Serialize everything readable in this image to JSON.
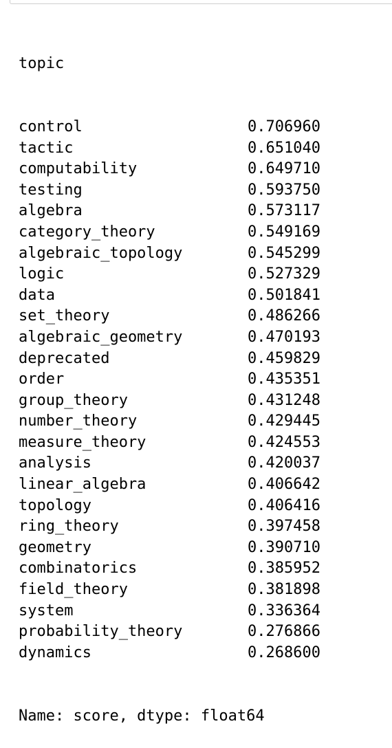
{
  "output": {
    "prompt_marker": ":",
    "header": "topic",
    "rows": [
      {
        "topic": "control",
        "score": "0.706960"
      },
      {
        "topic": "tactic",
        "score": "0.651040"
      },
      {
        "topic": "computability",
        "score": "0.649710"
      },
      {
        "topic": "testing",
        "score": "0.593750"
      },
      {
        "topic": "algebra",
        "score": "0.573117"
      },
      {
        "topic": "category_theory",
        "score": "0.549169"
      },
      {
        "topic": "algebraic_topology",
        "score": "0.545299"
      },
      {
        "topic": "logic",
        "score": "0.527329"
      },
      {
        "topic": "data",
        "score": "0.501841"
      },
      {
        "topic": "set_theory",
        "score": "0.486266"
      },
      {
        "topic": "algebraic_geometry",
        "score": "0.470193"
      },
      {
        "topic": "deprecated",
        "score": "0.459829"
      },
      {
        "topic": "order",
        "score": "0.435351"
      },
      {
        "topic": "group_theory",
        "score": "0.431248"
      },
      {
        "topic": "number_theory",
        "score": "0.429445"
      },
      {
        "topic": "measure_theory",
        "score": "0.424553"
      },
      {
        "topic": "analysis",
        "score": "0.420037"
      },
      {
        "topic": "linear_algebra",
        "score": "0.406642"
      },
      {
        "topic": "topology",
        "score": "0.406416"
      },
      {
        "topic": "ring_theory",
        "score": "0.397458"
      },
      {
        "topic": "geometry",
        "score": "0.390710"
      },
      {
        "topic": "combinatorics",
        "score": "0.385952"
      },
      {
        "topic": "field_theory",
        "score": "0.381898"
      },
      {
        "topic": "system",
        "score": "0.336364"
      },
      {
        "topic": "probability_theory",
        "score": "0.276866"
      },
      {
        "topic": "dynamics",
        "score": "0.268600"
      }
    ],
    "footer": "Name: score, dtype: float64"
  }
}
